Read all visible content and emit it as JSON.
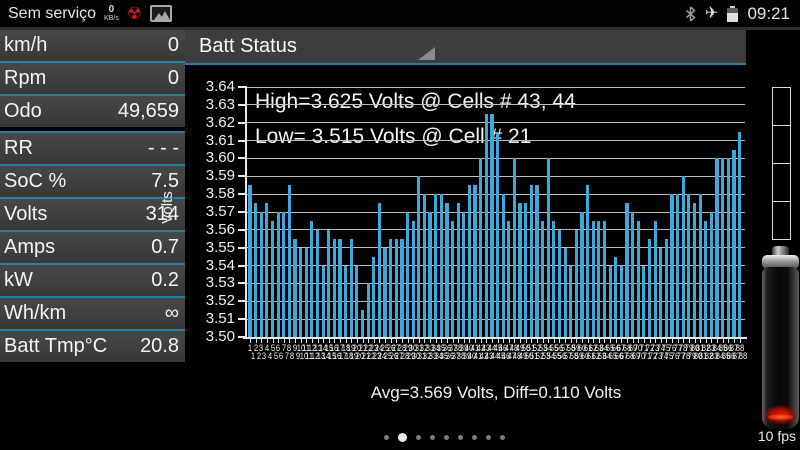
{
  "status_bar": {
    "carrier_label": "Sem serviço",
    "data_rate": {
      "value": "0",
      "unit": "KB/s"
    },
    "clock": "09:21"
  },
  "sidebar": {
    "groups": [
      {
        "rows": [
          {
            "label": "km/h",
            "value": "0"
          },
          {
            "label": "Rpm",
            "value": "0"
          },
          {
            "label": "Odo",
            "value": "49,659"
          }
        ]
      },
      {
        "rows": [
          {
            "label": "RR",
            "value": "- - -"
          },
          {
            "label": "SoC %",
            "value": "7.5"
          },
          {
            "label": "Volts",
            "value": "314"
          },
          {
            "label": "Amps",
            "value": "0.7"
          },
          {
            "label": "kW",
            "value": "0.2"
          },
          {
            "label": "Wh/km",
            "value": "∞"
          },
          {
            "label": "Batt Tmp°C",
            "value": "20.8"
          }
        ]
      }
    ]
  },
  "header": {
    "title": "Batt Status"
  },
  "chart_data": {
    "type": "bar",
    "title": "Batt Status",
    "ylabel": "Volts",
    "ylim": [
      3.5,
      3.64
    ],
    "ytick_step": 0.01,
    "grid": true,
    "legend": "none",
    "bar_color": "#3ea8db",
    "cell_count": 88,
    "xtick_labels": "cell numbers 1-88 (overlapping, illegible)",
    "values": [
      3.585,
      3.575,
      3.57,
      3.575,
      3.565,
      3.57,
      3.57,
      3.585,
      3.555,
      3.55,
      3.55,
      3.565,
      3.56,
      3.54,
      3.56,
      3.555,
      3.555,
      3.54,
      3.555,
      3.54,
      3.515,
      3.53,
      3.545,
      3.575,
      3.55,
      3.555,
      3.555,
      3.555,
      3.57,
      3.565,
      3.59,
      3.58,
      3.57,
      3.58,
      3.58,
      3.575,
      3.565,
      3.575,
      3.57,
      3.585,
      3.585,
      3.6,
      3.625,
      3.625,
      3.615,
      3.58,
      3.565,
      3.6,
      3.575,
      3.575,
      3.585,
      3.585,
      3.565,
      3.6,
      3.565,
      3.56,
      3.55,
      3.54,
      3.56,
      3.57,
      3.585,
      3.565,
      3.565,
      3.565,
      3.54,
      3.545,
      3.54,
      3.575,
      3.57,
      3.565,
      3.54,
      3.555,
      3.565,
      3.55,
      3.555,
      3.58,
      3.58,
      3.59,
      3.58,
      3.575,
      3.58,
      3.565,
      3.57,
      3.6,
      3.6,
      3.6,
      3.605,
      3.615
    ],
    "annotations": {
      "high_line": "High=3.625 Volts @ Cells # 43, 44",
      "low_line": "Low= 3.515 Volts @ Cell # 21",
      "caption": "Avg=3.569 Volts, Diff=0.110 Volts",
      "high_volts": 3.625,
      "high_cells": [
        43,
        44
      ],
      "low_volts": 3.515,
      "low_cell": 21,
      "avg_volts": 3.569,
      "diff_volts": 0.11
    }
  },
  "right_panel": {
    "segment_gauge_cells": 4,
    "fps_label": "10 fps"
  },
  "pager": {
    "dot_count": 9,
    "active_index": 1
  },
  "colors": {
    "bar": "#3ea8db",
    "separator": "#2b7f9e",
    "grid": "#bdbdbd",
    "background": "#000000",
    "panel": "#3d3d3d",
    "radiation_icon": "#c32222"
  }
}
